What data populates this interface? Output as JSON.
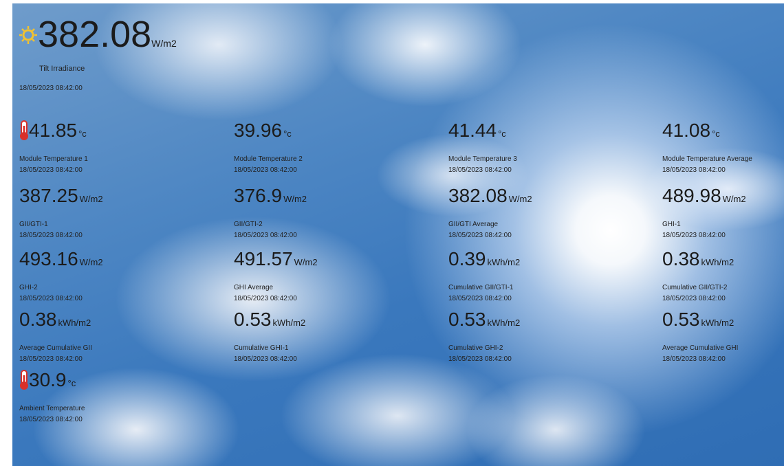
{
  "header": {
    "value": "382.08",
    "unit": "W/m2",
    "label": "Tilt Irradiance",
    "timestamp": "18/05/2023 08:42:00"
  },
  "rows": [
    [
      {
        "value": "41.85",
        "unit": "°c",
        "label": "Module Temperature 1",
        "timestamp": "18/05/2023 08:42:00"
      },
      {
        "value": "39.96",
        "unit": "°c",
        "label": "Module Temperature 2",
        "timestamp": "18/05/2023 08:42:00"
      },
      {
        "value": "41.44",
        "unit": "°c",
        "label": "Module Temperature 3",
        "timestamp": "18/05/2023 08:42:00"
      },
      {
        "value": "41.08",
        "unit": "°c",
        "label": "Module Temperature Average",
        "timestamp": "18/05/2023 08:42:00"
      }
    ],
    [
      {
        "value": "387.25",
        "unit": "W/m2",
        "label": "GII/GTI-1",
        "timestamp": "18/05/2023 08:42:00"
      },
      {
        "value": "376.9",
        "unit": "W/m2",
        "label": "GII/GTI-2",
        "timestamp": "18/05/2023 08:42:00"
      },
      {
        "value": "382.08",
        "unit": "W/m2",
        "label": "GII/GTI Average",
        "timestamp": "18/05/2023 08:42:00"
      },
      {
        "value": "489.98",
        "unit": "W/m2",
        "label": "GHI-1",
        "timestamp": "18/05/2023 08:42:00"
      }
    ],
    [
      {
        "value": "493.16",
        "unit": "W/m2",
        "label": "GHI-2",
        "timestamp": "18/05/2023 08:42:00"
      },
      {
        "value": "491.57",
        "unit": "W/m2",
        "label": "GHI Average",
        "timestamp": "18/05/2023 08:42:00"
      },
      {
        "value": "0.39",
        "unit": "kWh/m2",
        "label": "Cumulative GII/GTI-1",
        "timestamp": "18/05/2023 08:42:00"
      },
      {
        "value": "0.38",
        "unit": "kWh/m2",
        "label": "Cumulative GII/GTI-2",
        "timestamp": "18/05/2023 08:42:00"
      }
    ],
    [
      {
        "value": "0.38",
        "unit": "kWh/m2",
        "label": "Average Cumulative GII",
        "timestamp": "18/05/2023 08:42:00"
      },
      {
        "value": "0.53",
        "unit": "kWh/m2",
        "label": "Cumulative GHI-1",
        "timestamp": "18/05/2023 08:42:00"
      },
      {
        "value": "0.53",
        "unit": "kWh/m2",
        "label": "Cumulative GHI-2",
        "timestamp": "18/05/2023 08:42:00"
      },
      {
        "value": "0.53",
        "unit": "kWh/m2",
        "label": "Average Cumulative GHI",
        "timestamp": "18/05/2023 08:42:00"
      }
    ],
    [
      {
        "value": "30.9",
        "unit": "°c",
        "label": "Ambient Temperature",
        "timestamp": "18/05/2023 08:42:00"
      }
    ]
  ]
}
